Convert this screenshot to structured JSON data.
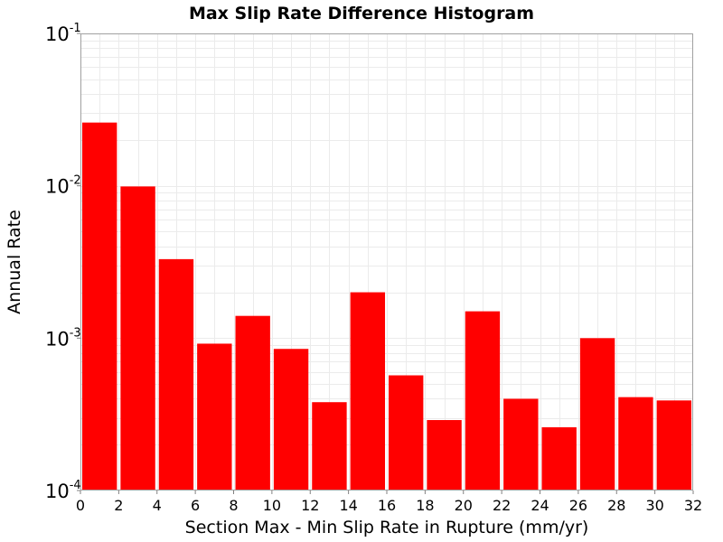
{
  "chart_data": {
    "type": "bar",
    "title": "Max Slip Rate Difference Histogram",
    "xlabel": "Section Max - Min Slip Rate in Rupture (mm/yr)",
    "ylabel": "Annual Rate",
    "xlim": [
      0,
      32
    ],
    "ylim": [
      0.0001,
      0.1
    ],
    "yscale": "log",
    "grid": true,
    "bar_color": "#ff0000",
    "bin_width": 2,
    "x_ticks": [
      "0",
      "2",
      "4",
      "6",
      "8",
      "10",
      "12",
      "14",
      "16",
      "18",
      "20",
      "22",
      "24",
      "26",
      "28",
      "30",
      "32"
    ],
    "y_ticks": [
      {
        "base": "10",
        "exp": "-4",
        "value": 0.0001
      },
      {
        "base": "10",
        "exp": "-3",
        "value": 0.001
      },
      {
        "base": "10",
        "exp": "-2",
        "value": 0.01
      },
      {
        "base": "10",
        "exp": "-1",
        "value": 0.1
      }
    ],
    "bins": [
      {
        "x": 1,
        "value": 0.026
      },
      {
        "x": 3,
        "value": 0.0099
      },
      {
        "x": 5,
        "value": 0.0033
      },
      {
        "x": 7,
        "value": 0.00092
      },
      {
        "x": 9,
        "value": 0.0014
      },
      {
        "x": 11,
        "value": 0.00085
      },
      {
        "x": 13,
        "value": 0.00038
      },
      {
        "x": 15,
        "value": 0.002
      },
      {
        "x": 17,
        "value": 0.00057
      },
      {
        "x": 19,
        "value": 0.00029
      },
      {
        "x": 21,
        "value": 0.0015
      },
      {
        "x": 23,
        "value": 0.0004
      },
      {
        "x": 25,
        "value": 0.00026
      },
      {
        "x": 27,
        "value": 0.001
      },
      {
        "x": 29,
        "value": 0.00041
      },
      {
        "x": 31,
        "value": 0.00039
      }
    ]
  }
}
